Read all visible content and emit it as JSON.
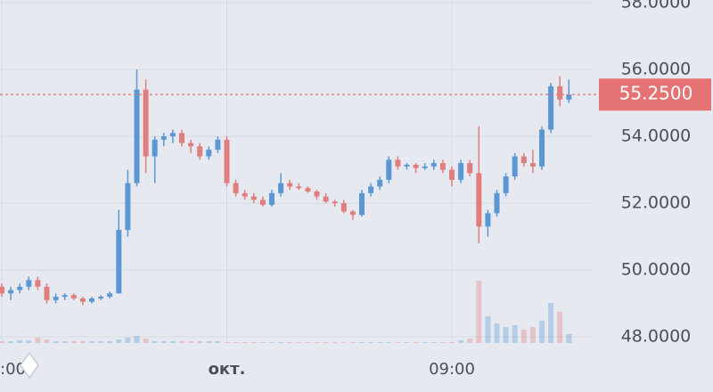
{
  "chart_data": {
    "type": "candlestick",
    "categories": [
      ":00",
      null,
      null,
      null,
      null,
      null,
      null,
      null,
      null,
      null,
      null,
      null,
      null,
      null,
      null,
      null,
      null,
      null,
      null,
      null,
      null,
      null,
      null,
      null,
      null,
      "окт.",
      null,
      null,
      null,
      null,
      null,
      null,
      null,
      null,
      null,
      null,
      null,
      null,
      null,
      null,
      null,
      null,
      null,
      null,
      null,
      null,
      null,
      null,
      null,
      null,
      "09:00",
      null,
      null,
      null,
      null,
      null,
      null,
      null,
      null,
      null,
      null,
      null,
      null,
      null
    ],
    "open": [
      49.5,
      49.3,
      49.4,
      49.5,
      49.7,
      49.5,
      49.1,
      49.2,
      49.25,
      49.15,
      49.05,
      49.15,
      49.2,
      49.3,
      51.2,
      52.6,
      55.4,
      53.4,
      53.9,
      54.0,
      54.1,
      53.8,
      53.7,
      53.4,
      53.6,
      53.9,
      52.6,
      52.3,
      52.2,
      52.1,
      51.95,
      52.3,
      52.6,
      52.5,
      52.45,
      52.35,
      52.2,
      52.05,
      52.0,
      51.75,
      51.65,
      52.3,
      52.5,
      52.7,
      53.3,
      53.1,
      53.15,
      53.05,
      53.1,
      53.2,
      53.0,
      52.7,
      53.2,
      52.9,
      51.3,
      51.7,
      52.3,
      52.8,
      53.4,
      53.2,
      53.1,
      54.2,
      55.5,
      55.1
    ],
    "high": [
      49.6,
      49.5,
      49.6,
      49.8,
      49.8,
      49.6,
      49.3,
      49.3,
      49.3,
      49.2,
      49.2,
      49.25,
      49.35,
      51.8,
      53.0,
      56.0,
      55.7,
      54.0,
      54.1,
      54.2,
      54.2,
      53.9,
      53.8,
      53.7,
      54.0,
      54.0,
      52.7,
      52.4,
      52.3,
      52.2,
      52.4,
      52.9,
      52.7,
      52.6,
      52.5,
      52.4,
      52.3,
      52.1,
      52.1,
      51.8,
      52.4,
      52.6,
      52.8,
      53.4,
      53.4,
      53.2,
      53.2,
      53.2,
      53.3,
      53.3,
      53.1,
      53.3,
      53.3,
      54.3,
      51.8,
      52.4,
      52.9,
      53.5,
      53.5,
      53.6,
      54.3,
      55.6,
      55.8,
      55.7
    ],
    "low": [
      49.2,
      49.1,
      49.3,
      49.4,
      49.4,
      49.0,
      49.0,
      49.1,
      49.1,
      48.95,
      49.0,
      49.1,
      49.15,
      49.3,
      51.0,
      52.5,
      52.9,
      52.6,
      53.7,
      53.8,
      53.7,
      53.5,
      53.3,
      53.3,
      53.5,
      52.5,
      52.2,
      52.1,
      52.0,
      51.9,
      51.9,
      52.2,
      52.4,
      52.4,
      52.3,
      52.1,
      52.0,
      51.9,
      51.7,
      51.5,
      51.6,
      52.2,
      52.4,
      52.6,
      53.0,
      53.0,
      52.9,
      53.0,
      53.0,
      52.9,
      52.5,
      52.6,
      52.8,
      50.8,
      51.0,
      51.6,
      52.2,
      52.7,
      53.1,
      52.9,
      53.0,
      54.1,
      54.9,
      55.0
    ],
    "close": [
      49.3,
      49.4,
      49.5,
      49.7,
      49.5,
      49.1,
      49.2,
      49.25,
      49.15,
      49.05,
      49.15,
      49.2,
      49.3,
      51.2,
      52.6,
      55.4,
      53.4,
      53.9,
      54.0,
      54.1,
      53.8,
      53.7,
      53.4,
      53.6,
      53.9,
      52.6,
      52.3,
      52.2,
      52.1,
      51.95,
      52.3,
      52.6,
      52.5,
      52.45,
      52.35,
      52.2,
      52.05,
      52.0,
      51.75,
      51.65,
      52.3,
      52.5,
      52.7,
      53.3,
      53.1,
      53.15,
      53.05,
      53.1,
      53.2,
      53.0,
      52.7,
      53.2,
      52.9,
      51.3,
      51.7,
      52.3,
      52.8,
      53.4,
      53.2,
      53.1,
      54.2,
      55.5,
      55.1,
      55.25
    ],
    "volume": [
      2,
      2,
      3,
      3,
      6,
      4,
      2,
      2,
      2,
      2,
      2,
      2,
      2,
      4,
      6,
      8,
      5,
      2,
      2,
      2,
      2,
      2,
      2,
      2,
      2,
      1,
      1,
      1,
      1,
      1,
      1,
      1,
      1,
      1,
      1,
      1,
      1,
      1,
      1,
      1,
      1,
      1,
      1,
      1,
      1,
      1,
      1,
      1,
      1,
      1,
      1,
      3,
      5,
      70,
      30,
      22,
      18,
      20,
      15,
      18,
      25,
      45,
      35,
      10
    ],
    "up_color": "#5a97d4",
    "down_color": "#e07e7e",
    "ylim": [
      46.35,
      58.08
    ],
    "yticks": [
      {
        "value": 48,
        "label": "48.0000"
      },
      {
        "value": 50,
        "label": "50.0000"
      },
      {
        "value": 52,
        "label": "52.0000"
      },
      {
        "value": 54,
        "label": "54.0000"
      },
      {
        "value": 56,
        "label": "56.0000"
      },
      {
        "value": 58,
        "label": "58.0000"
      }
    ],
    "last_price": 55.25,
    "last_price_label": "55.2500",
    "last_price_color": "#e57373",
    "grid": true
  }
}
